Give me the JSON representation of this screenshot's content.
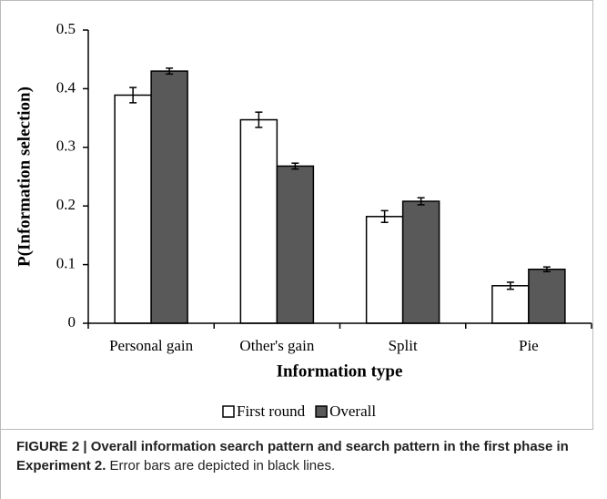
{
  "chart_data": {
    "type": "bar",
    "x_label": "Information type",
    "y_label": "P(Information selection)",
    "categories": [
      "Personal gain",
      "Other's gain",
      "Split",
      "Pie"
    ],
    "series": [
      {
        "name": "First round",
        "color": "#ffffff",
        "values": [
          0.389,
          0.347,
          0.182,
          0.064
        ],
        "errors": [
          0.013,
          0.013,
          0.01,
          0.006
        ]
      },
      {
        "name": "Overall",
        "color": "#595959",
        "values": [
          0.43,
          0.268,
          0.208,
          0.092
        ],
        "errors": [
          0.005,
          0.005,
          0.006,
          0.004
        ]
      }
    ],
    "ylim": [
      0,
      0.5
    ],
    "yticks": [
      0,
      0.1,
      0.2,
      0.3,
      0.4,
      0.5
    ],
    "grid": false,
    "legend": "bottom"
  },
  "caption": {
    "label": "FIGURE 2 | Overall information search pattern and search pattern in the first phase in Experiment 2.",
    "text": "Error bars are depicted in black lines."
  }
}
